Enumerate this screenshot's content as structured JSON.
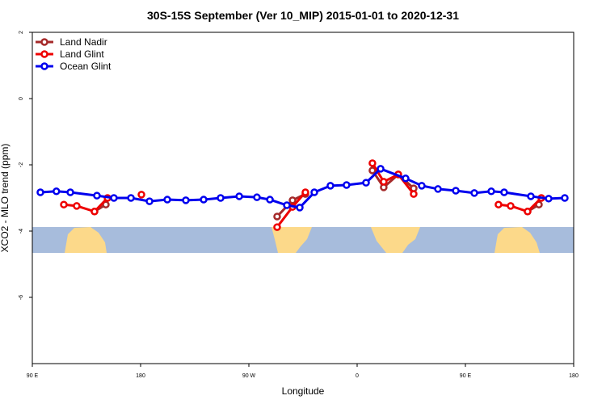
{
  "chart_data": {
    "type": "line",
    "title": "30S-15S September (Ver 10_MIP)   2015-01-01 to 2020-12-31",
    "x_label": "Longitude",
    "y_label": "XCO2 - MLO trend (ppm)",
    "xlim": [
      90,
      540
    ],
    "ylim": [
      -8,
      2
    ],
    "xticks": [
      {
        "value": 90,
        "label": "90 E"
      },
      180,
      {
        "value": 270,
        "label": "90 W"
      },
      {
        "value": 360,
        "label": "0"
      },
      {
        "value": 450,
        "label": "90 E"
      },
      {
        "value": 540,
        "label": "180"
      }
    ],
    "yticks": [
      -6,
      -4,
      -2,
      0,
      2
    ],
    "legend": "top-left",
    "series": [
      {
        "name": "Land Nadir",
        "color": "#a52a2a",
        "x": [
          141.7,
          151.1,
          null,
          293.5,
          306.3,
          317.0,
          null,
          372.7,
          382.1,
          394.2,
          407.0,
          null,
          501.7,
          511.1
        ],
        "values": [
          -3.41,
          -3.2,
          null,
          -3.56,
          -3.07,
          -2.88,
          null,
          -2.17,
          -2.68,
          -2.29,
          -2.71,
          null,
          -3.41,
          -3.2
        ]
      },
      {
        "name": "Land Glint",
        "color": "#ee0000",
        "x": [
          116.2,
          126.9,
          141.7,
          152.5,
          null,
          180.7,
          null,
          293.5,
          306.3,
          317.0,
          null,
          372.7,
          382.1,
          394.2,
          407.0,
          null,
          477.5,
          487.6,
          501.7,
          513.1
        ],
        "values": [
          -3.2,
          -3.24,
          -3.41,
          -3.0,
          null,
          -2.9,
          null,
          -3.88,
          -3.27,
          -2.83,
          null,
          -1.95,
          -2.51,
          -2.29,
          -2.88,
          null,
          -3.2,
          -3.24,
          -3.41,
          -3.0
        ]
      },
      {
        "name": "Ocean Glint",
        "color": "#0000ee",
        "x": [
          96.7,
          110.0,
          121.6,
          143.7,
          157.8,
          172.0,
          187.4,
          202.2,
          217.6,
          232.4,
          246.5,
          262.0,
          276.7,
          287.5,
          301.6,
          312.3,
          324.4,
          337.8,
          351.2,
          367.4,
          379.5,
          400.3,
          413.7,
          427.2,
          442.0,
          457.4,
          471.5,
          482.2,
          504.4,
          519.2,
          532.6
        ],
        "values": [
          -2.83,
          -2.8,
          -2.83,
          -2.93,
          -3.0,
          -3.0,
          -3.1,
          -3.05,
          -3.07,
          -3.05,
          -3.0,
          -2.95,
          -2.98,
          -3.05,
          -3.22,
          -3.29,
          -2.83,
          -2.63,
          -2.61,
          -2.54,
          -2.12,
          -2.41,
          -2.63,
          -2.73,
          -2.78,
          -2.85,
          -2.8,
          -2.83,
          -2.95,
          -3.02,
          -3.0
        ]
      }
    ]
  }
}
